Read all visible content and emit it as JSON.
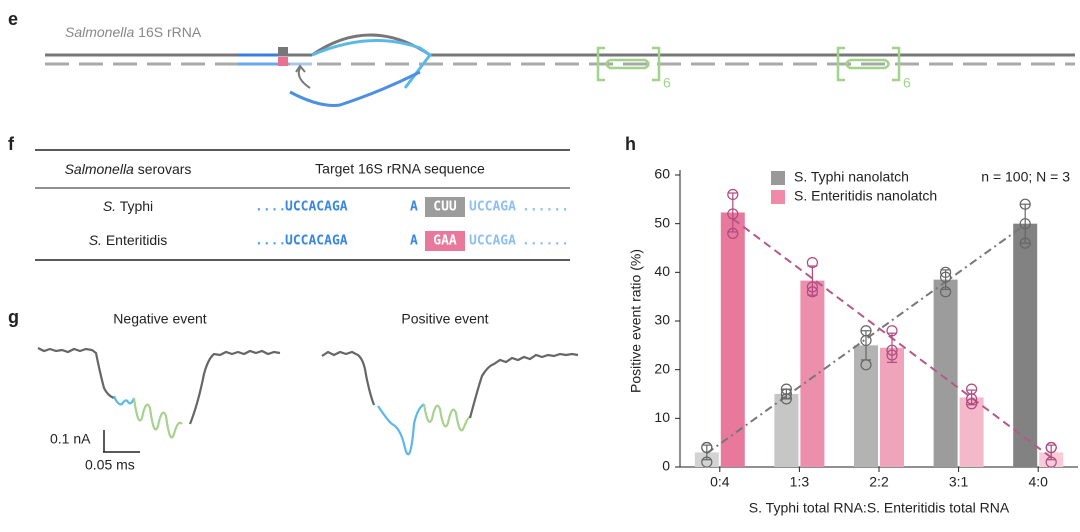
{
  "panel_e": {
    "label": "e",
    "title_italic": "Salmonella",
    "title_rest": "16S rRNA",
    "repeat_1": "6",
    "repeat_2": "6"
  },
  "panel_f": {
    "label": "f",
    "header": {
      "serovars_italic": "Salmonella",
      "serovars_rest": "serovars",
      "sequence": "Target 16S rRNA sequence"
    },
    "rows": [
      {
        "serovar_italic": "S.",
        "serovar_rest": "Typhi",
        "lead": "......",
        "left": "UCCACAGA",
        "base": "A",
        "variant": "CUU",
        "right": "UCCAGA",
        "trail": "......"
      },
      {
        "serovar_italic": "S.",
        "serovar_rest": "Enteritidis",
        "lead": "......",
        "left": "UCCACAGA",
        "base": "A",
        "variant": "GAA",
        "right": "UCCAGA",
        "trail": "......"
      }
    ]
  },
  "panel_g": {
    "label": "g",
    "negative": "Negative event",
    "positive": "Positive event",
    "scale_current": "0.1 nA",
    "scale_time": "0.05 ms"
  },
  "chart_data": {
    "type": "bar",
    "label": "h",
    "annotation": "n = 100; N = 3",
    "x_label": "S. Typhi total RNA:S. Enteritidis total RNA",
    "y_label": "Positive event ratio (%)",
    "categories": [
      "0:4",
      "1:3",
      "2:2",
      "3:1",
      "4:0"
    ],
    "ylim": [
      0,
      60
    ],
    "yticks": [
      0,
      10,
      20,
      30,
      40,
      50,
      60
    ],
    "series": [
      {
        "name": "S. Typhi nanolatch",
        "color": "#999999",
        "colors": [
          "#d3d3d3",
          "#c6c6c6",
          "#b3b3b3",
          "#9c9c9c",
          "#828282"
        ],
        "values": [
          3,
          15,
          25,
          38.5,
          50
        ],
        "errors": [
          1.5,
          1,
          3,
          2,
          4
        ],
        "points": [
          [
            1,
            4,
            4
          ],
          [
            14,
            15,
            16
          ],
          [
            21,
            26,
            28
          ],
          [
            36,
            39,
            40
          ],
          [
            46,
            50,
            54
          ]
        ],
        "trend_color": "#777777",
        "trend_dash": "8 4 2 4"
      },
      {
        "name": "S. Enteritidis nanolatch",
        "color": "#f08aaa",
        "colors": [
          "#e8799c",
          "#ec8fad",
          "#f0a4bc",
          "#f4b8cb",
          "#f8cbd9"
        ],
        "values": [
          52.3,
          38.3,
          24.5,
          14.3,
          3
        ],
        "errors": [
          4,
          3,
          3,
          1.5,
          1.5
        ],
        "points": [
          [
            48,
            52,
            56
          ],
          [
            36,
            37,
            42
          ],
          [
            23,
            24,
            28
          ],
          [
            13,
            14,
            16
          ],
          [
            1,
            4,
            4
          ]
        ],
        "trend_color": "#b5588a",
        "trend_dash": "8 5"
      }
    ]
  }
}
